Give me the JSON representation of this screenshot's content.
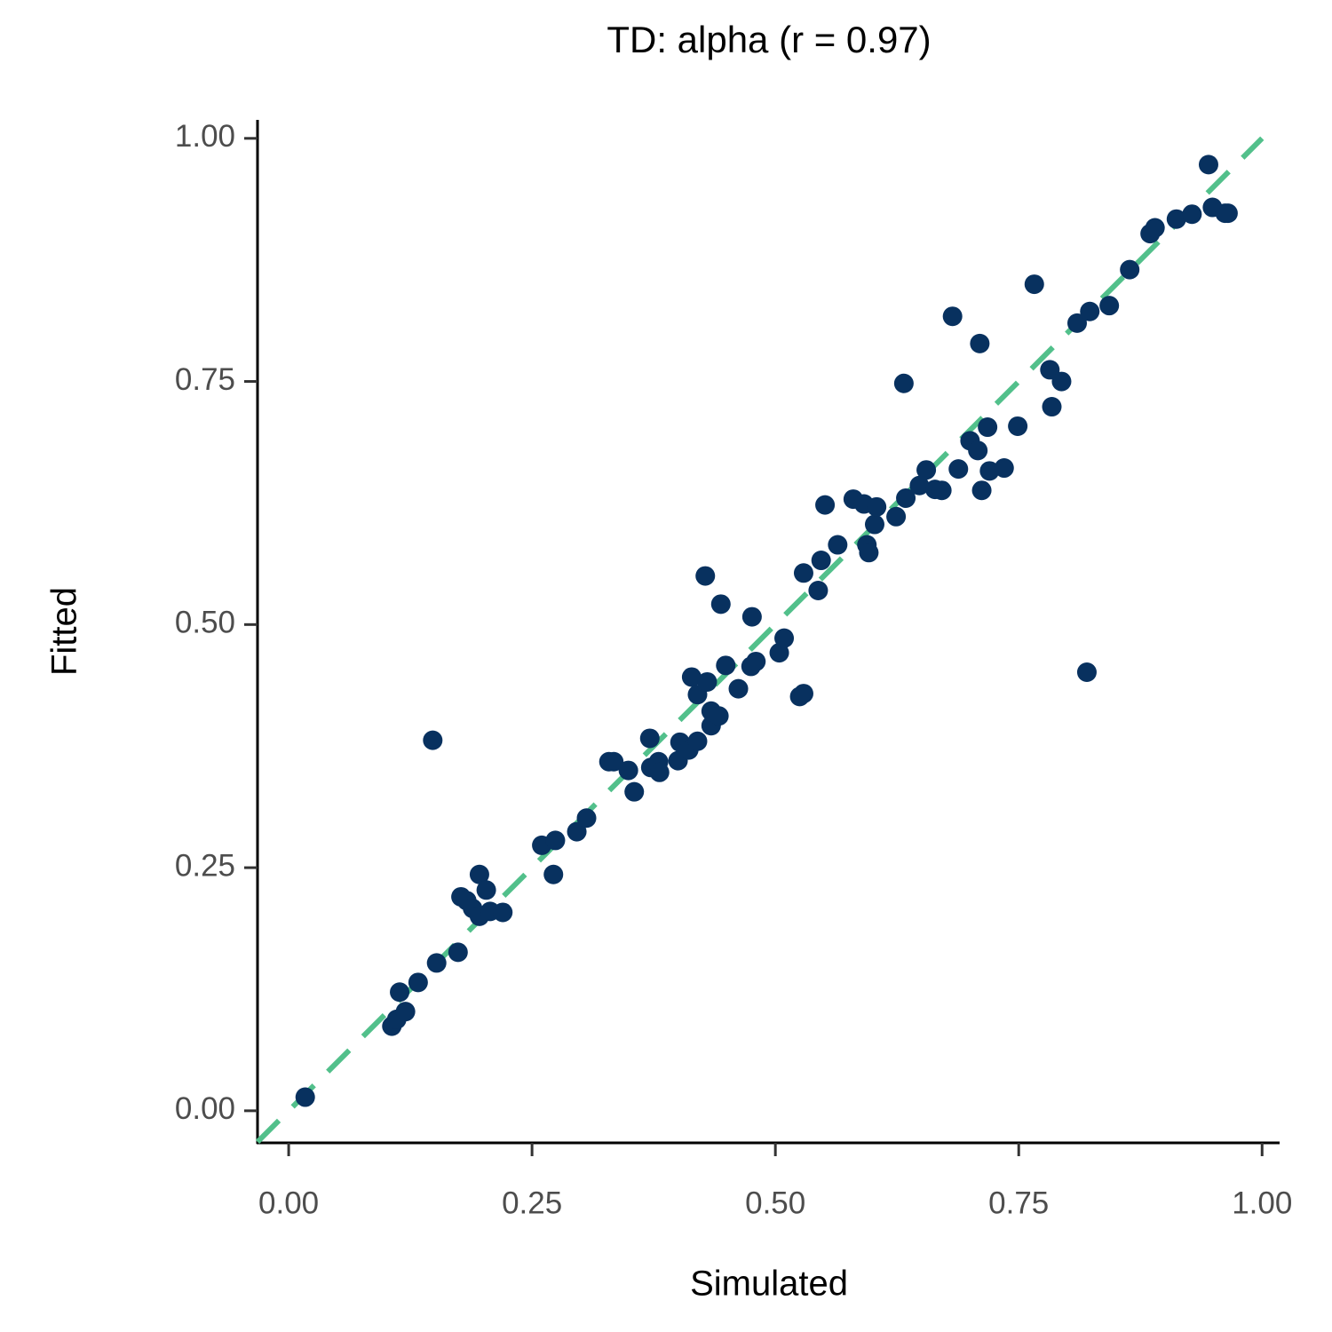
{
  "chart_data": {
    "type": "scatter",
    "title": "TD: alpha (r = 0.97)",
    "x_label": "Simulated",
    "y_label": "Fitted",
    "color": "#08315f",
    "reference_line": {
      "x": [
        -0.032,
        1.0
      ],
      "y": [
        -0.032,
        1.0
      ],
      "color": "#52c08b",
      "dashed": true
    },
    "xlim": [
      -0.032,
      1.018
    ],
    "ylim": [
      -0.033,
      1.019
    ],
    "xticks": [
      {
        "value": 0,
        "label": "0.00"
      },
      0.25,
      {
        "value": 0.5,
        "label": "0.50"
      },
      0.75,
      {
        "value": 1,
        "label": "1.00"
      }
    ],
    "yticks": [
      {
        "value": 0,
        "label": "0.00"
      },
      0.25,
      {
        "value": 0.5,
        "label": "0.50"
      },
      0.75,
      {
        "value": 1,
        "label": "1.00"
      }
    ],
    "x": [
      0.017,
      0.106,
      0.111,
      0.12,
      0.114,
      0.133,
      0.152,
      0.174,
      0.148,
      0.177,
      0.183,
      0.189,
      0.196,
      0.203,
      0.196,
      0.207,
      0.22,
      0.26,
      0.274,
      0.272,
      0.296,
      0.306,
      0.329,
      0.334,
      0.349,
      0.355,
      0.371,
      0.372,
      0.38,
      0.381,
      0.4,
      0.402,
      0.411,
      0.42,
      0.414,
      0.42,
      0.43,
      0.428,
      0.434,
      0.434,
      0.442,
      0.444,
      0.449,
      0.462,
      0.475,
      0.48,
      0.476,
      0.504,
      0.509,
      0.525,
      0.529,
      0.529,
      0.544,
      0.547,
      0.551,
      0.564,
      0.58,
      0.591,
      0.594,
      0.596,
      0.602,
      0.604,
      0.624,
      0.632,
      0.634,
      0.648,
      0.655,
      0.664,
      0.671,
      0.682,
      0.688,
      0.7,
      0.708,
      0.71,
      0.712,
      0.718,
      0.72,
      0.735,
      0.749,
      0.766,
      0.782,
      0.784,
      0.794,
      0.81,
      0.82,
      0.823,
      0.843,
      0.864,
      0.885,
      0.89,
      0.912,
      0.928,
      0.945,
      0.949,
      0.962,
      0.965
    ],
    "y": [
      0.014,
      0.087,
      0.094,
      0.102,
      0.122,
      0.132,
      0.152,
      0.163,
      0.381,
      0.22,
      0.216,
      0.208,
      0.243,
      0.227,
      0.2,
      0.205,
      0.204,
      0.273,
      0.278,
      0.243,
      0.287,
      0.301,
      0.359,
      0.359,
      0.35,
      0.328,
      0.383,
      0.353,
      0.359,
      0.348,
      0.36,
      0.379,
      0.371,
      0.38,
      0.446,
      0.428,
      0.441,
      0.55,
      0.411,
      0.396,
      0.406,
      0.521,
      0.458,
      0.434,
      0.457,
      0.462,
      0.508,
      0.471,
      0.486,
      0.426,
      0.429,
      0.553,
      0.535,
      0.566,
      0.623,
      0.582,
      0.629,
      0.624,
      0.582,
      0.574,
      0.603,
      0.621,
      0.611,
      0.748,
      0.63,
      0.643,
      0.659,
      0.639,
      0.638,
      0.817,
      0.66,
      0.689,
      0.679,
      0.789,
      0.638,
      0.703,
      0.658,
      0.661,
      0.704,
      0.85,
      0.762,
      0.724,
      0.75,
      0.81,
      0.451,
      0.822,
      0.828,
      0.865,
      0.902,
      0.908,
      0.917,
      0.922,
      0.973,
      0.929,
      0.923,
      0.923
    ]
  }
}
